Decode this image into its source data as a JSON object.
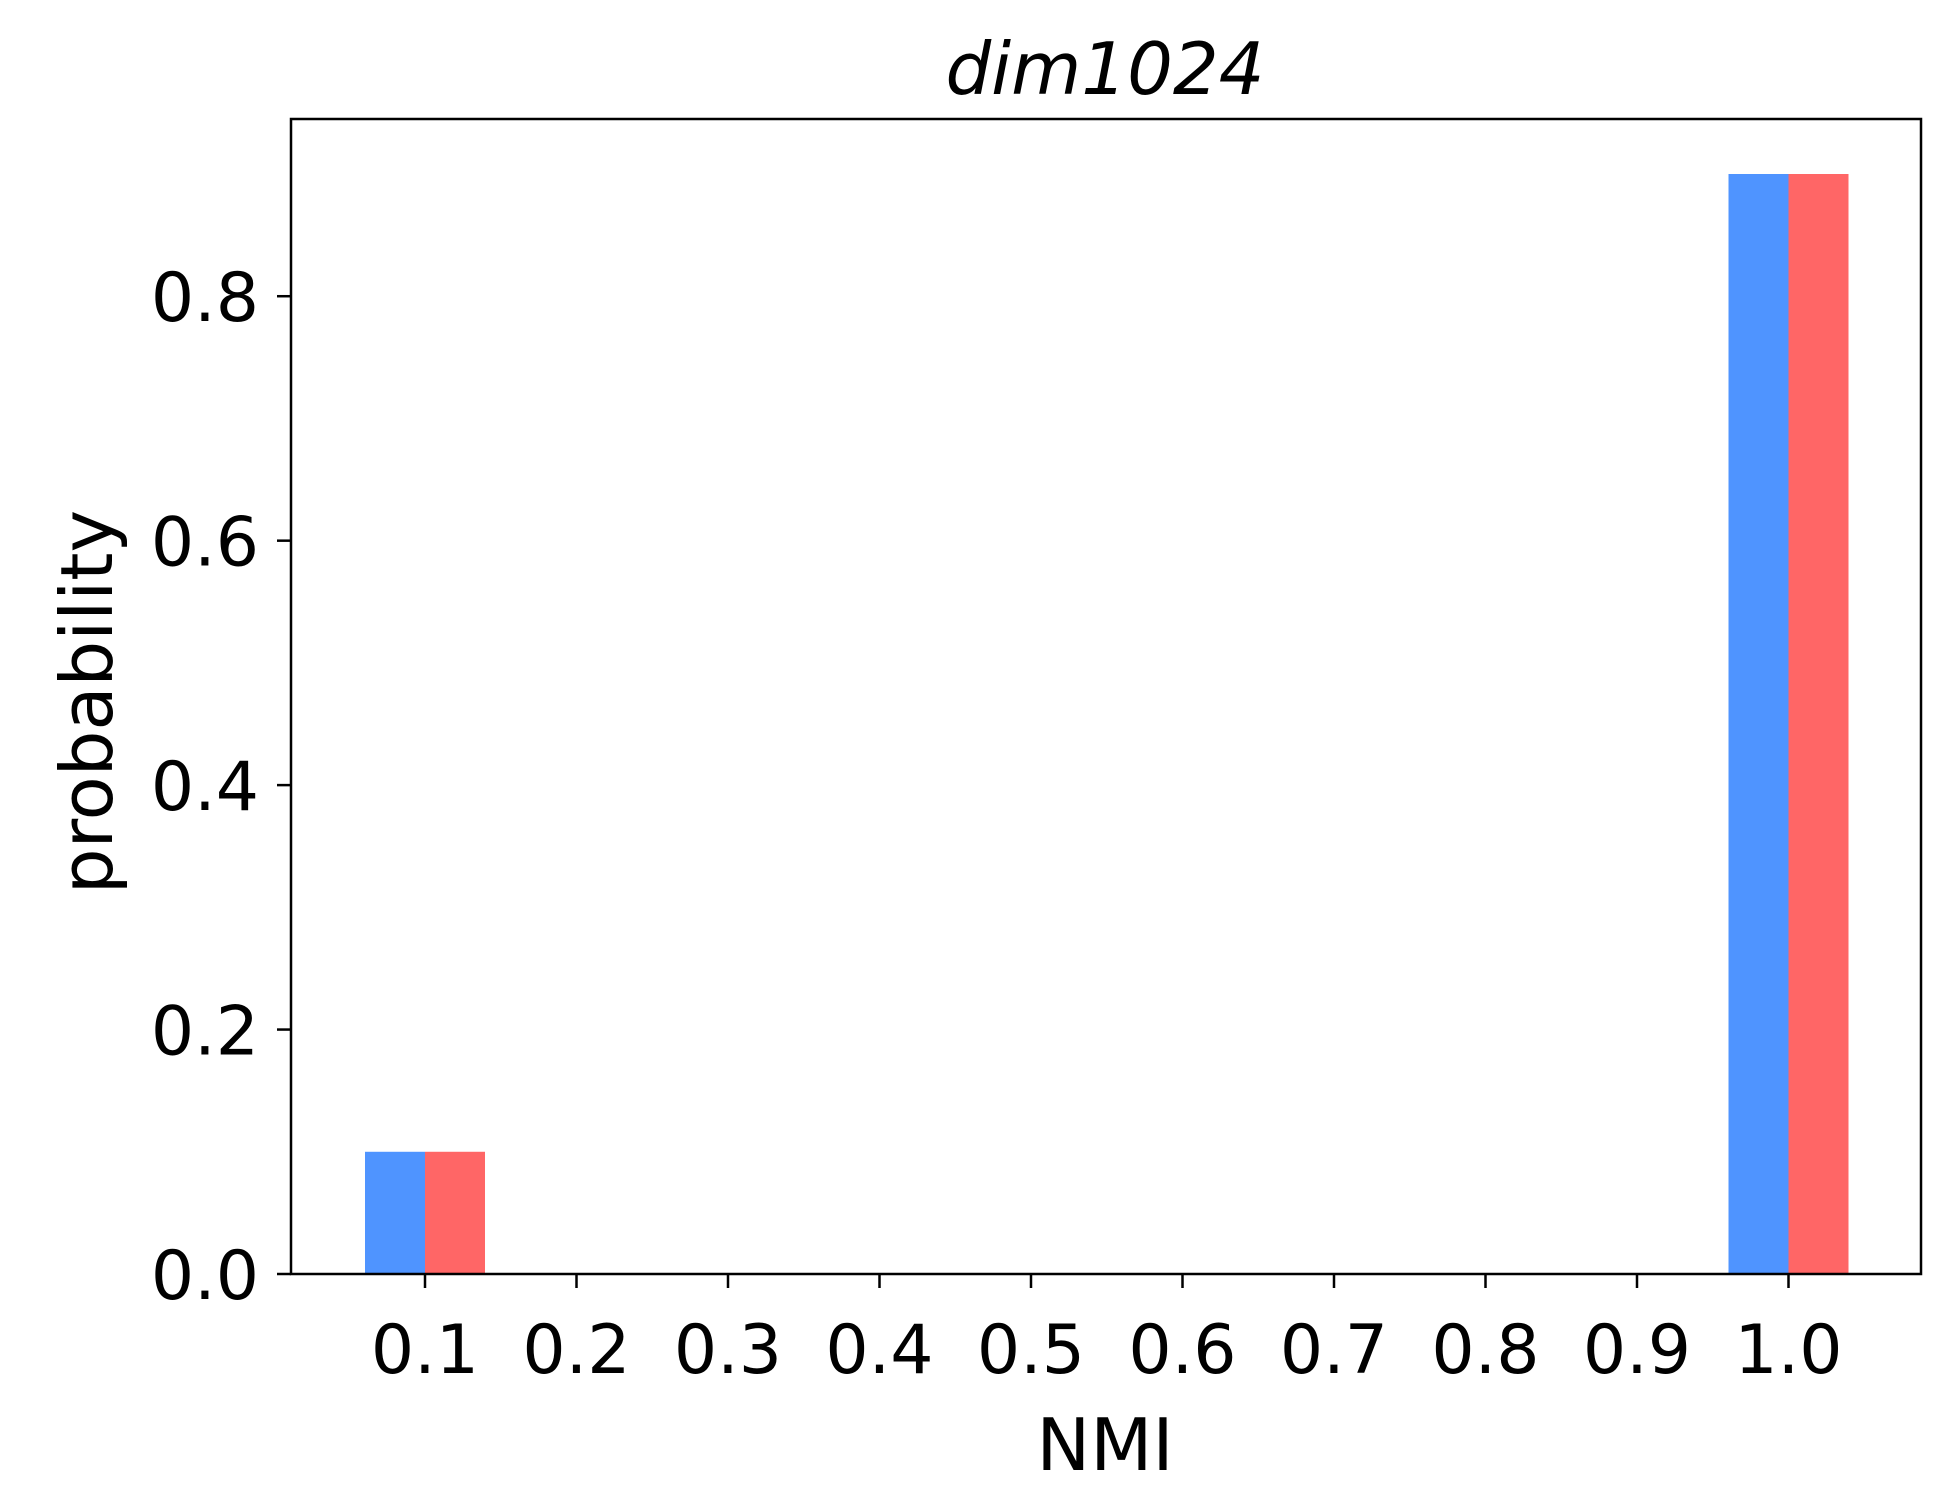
{
  "chart_data": {
    "type": "bar",
    "title": "dim1024",
    "xlabel": "NMI",
    "ylabel": "probability",
    "categories": [
      "0.1",
      "0.2",
      "0.3",
      "0.4",
      "0.5",
      "0.6",
      "0.7",
      "0.8",
      "0.9",
      "1.0"
    ],
    "series": [
      {
        "color": "#4f94ff",
        "values": [
          0.1,
          0,
          0,
          0,
          0,
          0,
          0,
          0,
          0,
          0.9
        ]
      },
      {
        "color": "#ff6666",
        "values": [
          0.1,
          0,
          0,
          0,
          0,
          0,
          0,
          0,
          0,
          0.9
        ]
      }
    ],
    "yticks": [
      "0.0",
      "0.2",
      "0.4",
      "0.6",
      "0.8"
    ],
    "ylim": [
      0,
      0.945
    ],
    "grid": false,
    "legend": "none"
  }
}
